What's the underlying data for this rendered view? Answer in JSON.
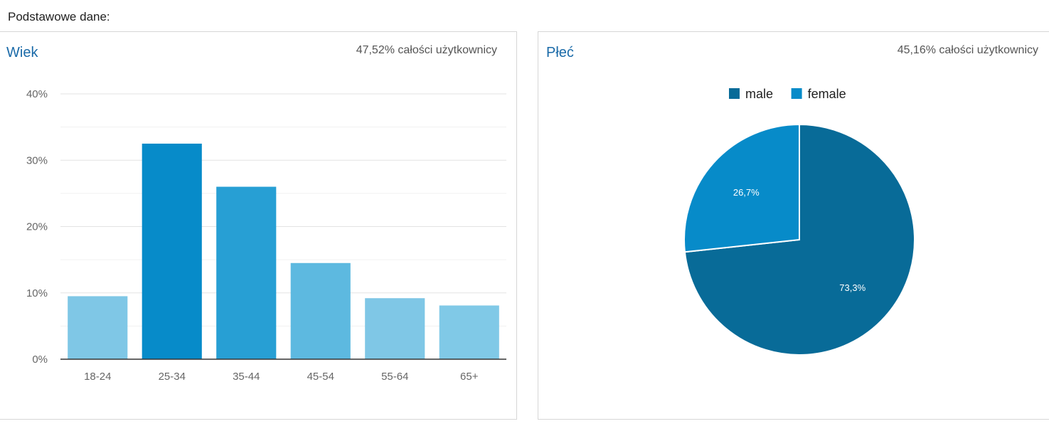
{
  "page": {
    "section_title": "Podstawowe dane:"
  },
  "age_card": {
    "title": "Wiek",
    "stat": "47,52% całości użytkownicy"
  },
  "gender_card": {
    "title": "Płeć",
    "stat": "45,16% całości użytkownicy"
  },
  "chart_data": [
    {
      "type": "bar",
      "title": "Wiek",
      "categories": [
        "18-24",
        "25-34",
        "35-44",
        "45-54",
        "55-64",
        "65+"
      ],
      "values": [
        9.5,
        32.5,
        26.0,
        14.5,
        9.2,
        8.1
      ],
      "ylim": [
        0,
        40
      ],
      "yticks": [
        0,
        10,
        20,
        30,
        40
      ],
      "ytick_labels": [
        "0%",
        "10%",
        "20%",
        "30%",
        "40%"
      ],
      "grid": true,
      "colors": [
        "#7fc7e6",
        "#078bc9",
        "#279fd4",
        "#5db9e0",
        "#7fc7e6",
        "#80c9e7"
      ]
    },
    {
      "type": "pie",
      "title": "Płeć",
      "legend_position": "top",
      "slices": [
        {
          "name": "male",
          "value": 73.3,
          "label": "73,3%",
          "color": "#086b98"
        },
        {
          "name": "female",
          "value": 26.7,
          "label": "26,7%",
          "color": "#078bc9"
        }
      ]
    }
  ]
}
